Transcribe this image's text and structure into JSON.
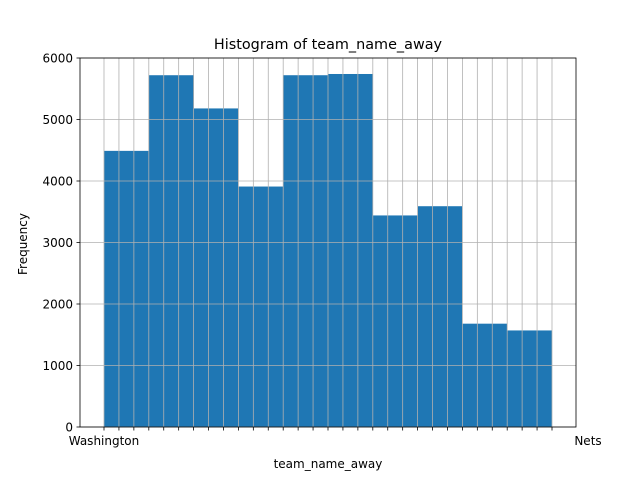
{
  "chart_data": {
    "type": "bar",
    "title": "Histogram of team_name_away",
    "xlabel": "team_name_away",
    "ylabel": "Frequency",
    "ylim": [
      0,
      6000
    ],
    "yticks": [
      0,
      1000,
      2000,
      3000,
      4000,
      5000,
      6000
    ],
    "grid": true,
    "bar_color": "#1f77b4",
    "bins": [
      {
        "range": [
          0,
          1
        ],
        "value": 4490
      },
      {
        "range": [
          1,
          2
        ],
        "value": 5720
      },
      {
        "range": [
          2,
          3
        ],
        "value": 5180
      },
      {
        "range": [
          3,
          4
        ],
        "value": 3910
      },
      {
        "range": [
          4,
          5
        ],
        "value": 5720
      },
      {
        "range": [
          5,
          6
        ],
        "value": 5740
      },
      {
        "range": [
          6,
          7
        ],
        "value": 3440
      },
      {
        "range": [
          7,
          8
        ],
        "value": 3590
      },
      {
        "range": [
          8,
          9
        ],
        "value": 1680
      },
      {
        "range": [
          9,
          10
        ],
        "value": 1570
      }
    ],
    "xtick_count": 31,
    "xtick_labels": {
      "first": "Washington",
      "last": "Nets"
    }
  }
}
